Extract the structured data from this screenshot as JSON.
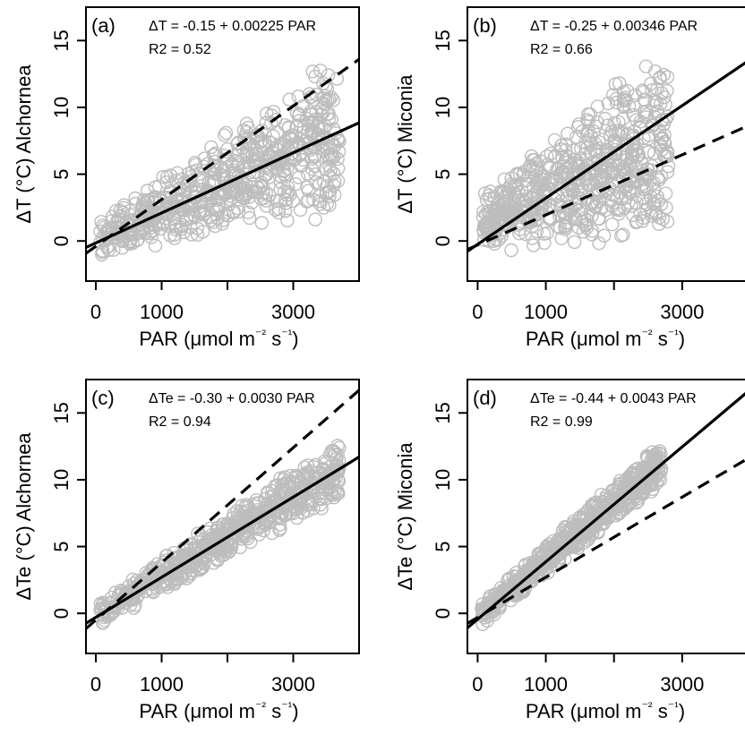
{
  "chart_data": [
    {
      "id": "a",
      "type": "scatter",
      "panel_label": "(a)",
      "equation": "ΔT = -0.15 + 0.00225 PAR",
      "r2_label": "R2 = 0.52",
      "xlabel": "PAR (μmol m⁻² s⁻¹)",
      "ylabel": "ΔT (°C) Alchornea",
      "xlim": [
        -150,
        4000
      ],
      "ylim": [
        -3,
        17.5
      ],
      "xticks": [
        0,
        1000,
        2000,
        3000
      ],
      "xtick_labels": [
        "0",
        "1000",
        "",
        "3000"
      ],
      "yticks": [
        0,
        5,
        10,
        15
      ],
      "ytick_labels": [
        "0",
        "5",
        "10",
        "15"
      ],
      "grid": false,
      "point_color": "#bdbdbd",
      "cloud": {
        "slope_bottom": 0.0008,
        "slope_top": 0.0035,
        "top_offset": 1.5,
        "xmax": 3700,
        "seed": 11
      },
      "lines": [
        {
          "style": "solid",
          "intercept": -0.15,
          "slope": 0.00225
        },
        {
          "style": "dashed",
          "intercept": -0.4,
          "slope": 0.0035
        }
      ]
    },
    {
      "id": "b",
      "type": "scatter",
      "panel_label": "(b)",
      "equation": "ΔT = -0.25 + 0.00346 PAR",
      "r2_label": "R2 = 0.66",
      "xlabel": "PAR (μmol m⁻² s⁻¹)",
      "ylabel": "ΔT (°C) Miconia",
      "xlim": [
        -150,
        4000
      ],
      "ylim": [
        -3,
        17.5
      ],
      "xticks": [
        0,
        1000,
        2000,
        3000
      ],
      "xtick_labels": [
        "0",
        "1000",
        "",
        "3000"
      ],
      "yticks": [
        0,
        5,
        10,
        15
      ],
      "ytick_labels": [
        "0",
        "5",
        "10",
        "15"
      ],
      "grid": false,
      "point_color": "#bdbdbd",
      "cloud": {
        "slope_bottom": 0.0005,
        "slope_top": 0.0042,
        "top_offset": 3.5,
        "xmax": 2800,
        "seed": 23
      },
      "lines": [
        {
          "style": "solid",
          "intercept": -0.25,
          "slope": 0.00346
        },
        {
          "style": "dashed",
          "intercept": -0.3,
          "slope": 0.00225
        }
      ]
    },
    {
      "id": "c",
      "type": "scatter",
      "panel_label": "(c)",
      "equation": "ΔTe = -0.30 + 0.0030 PAR",
      "r2_label": "R2 = 0.94",
      "xlabel": "PAR (μmol m⁻² s⁻¹)",
      "ylabel": "ΔTe (°C) Alchornea",
      "xlim": [
        -150,
        4000
      ],
      "ylim": [
        -3,
        17.5
      ],
      "xticks": [
        0,
        1000,
        2000,
        3000
      ],
      "xtick_labels": [
        "0",
        "1000",
        "",
        "3000"
      ],
      "yticks": [
        0,
        5,
        10,
        15
      ],
      "ytick_labels": [
        "0",
        "5",
        "10",
        "15"
      ],
      "grid": false,
      "point_color": "#bdbdbd",
      "cloud": {
        "slope_bottom": 0.0026,
        "slope_top": 0.0034,
        "top_offset": 0.8,
        "xmax": 3700,
        "seed": 37
      },
      "lines": [
        {
          "style": "solid",
          "intercept": -0.3,
          "slope": 0.003
        },
        {
          "style": "dashed",
          "intercept": -0.5,
          "slope": 0.0043
        }
      ]
    },
    {
      "id": "d",
      "type": "scatter",
      "panel_label": "(d)",
      "equation": "ΔTe = -0.44 + 0.0043 PAR",
      "r2_label": "R2 = 0.99",
      "xlabel": "PAR (μmol m⁻² s⁻¹)",
      "ylabel": "ΔTe (°C) Miconia",
      "xlim": [
        -150,
        4000
      ],
      "ylim": [
        -3,
        17.5
      ],
      "xticks": [
        0,
        1000,
        2000,
        3000
      ],
      "xtick_labels": [
        "0",
        "1000",
        "",
        "3000"
      ],
      "yticks": [
        0,
        5,
        10,
        15
      ],
      "ytick_labels": [
        "0",
        "5",
        "10",
        "15"
      ],
      "grid": false,
      "point_color": "#bdbdbd",
      "cloud": {
        "slope_bottom": 0.004,
        "slope_top": 0.0046,
        "top_offset": 0.6,
        "xmax": 2700,
        "seed": 53
      },
      "lines": [
        {
          "style": "solid",
          "intercept": -0.44,
          "slope": 0.0043
        },
        {
          "style": "dashed",
          "intercept": -0.3,
          "slope": 0.003
        }
      ]
    }
  ]
}
